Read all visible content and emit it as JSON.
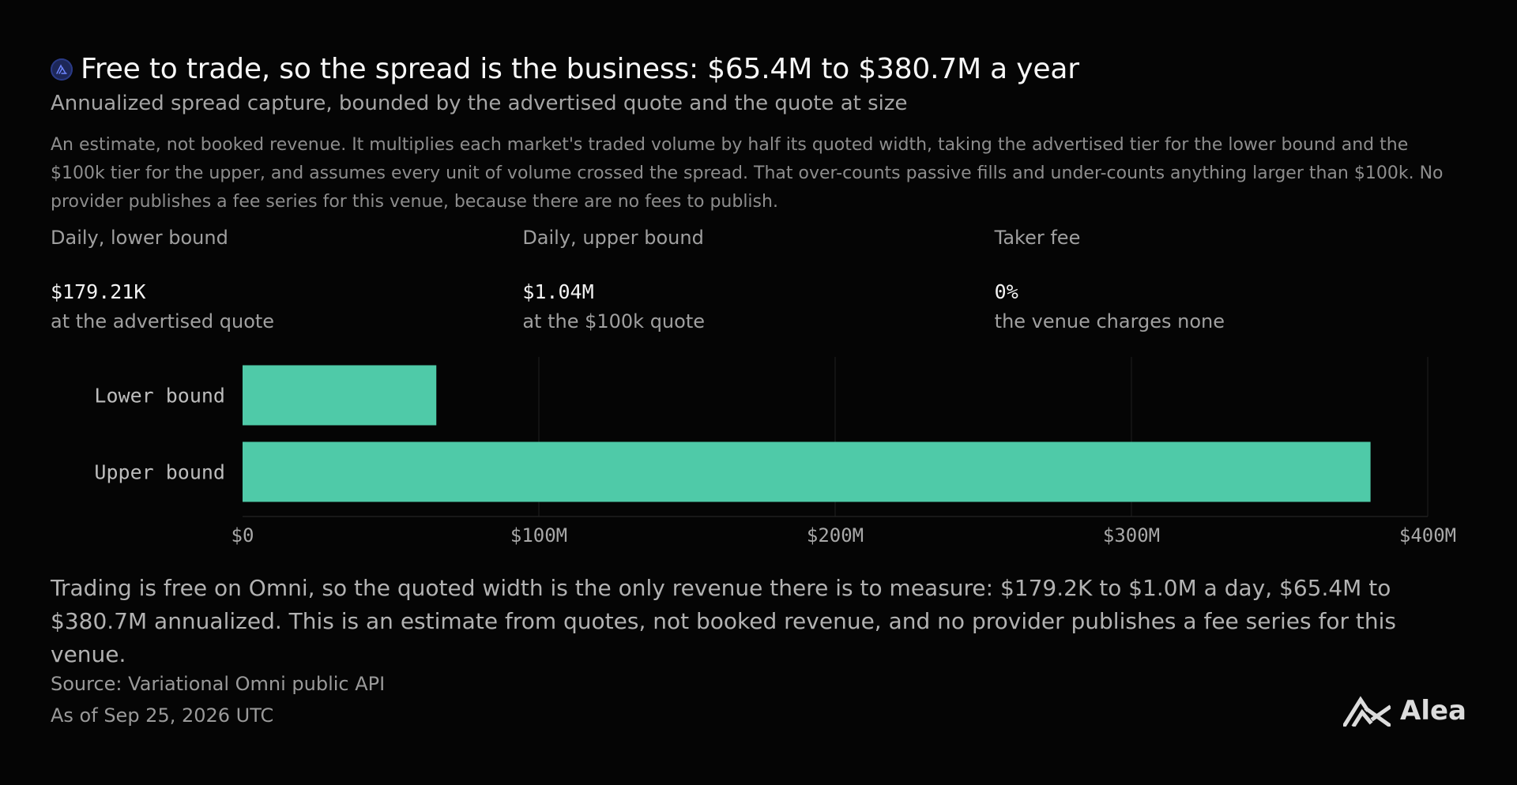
{
  "header": {
    "title": "Free to trade, so the spread is the business: $65.4M to $380.7M a year",
    "subtitle": "Annualized spread capture, bounded by the advertised quote and the quote at size",
    "note": "An estimate, not booked revenue. It multiplies each market's traded volume by half its quoted width, taking the advertised tier for the lower bound and the $100k tier for the upper, and assumes every unit of volume crossed the spread. That over-counts passive fills and under-counts anything larger than $100k. No provider publishes a fee series for this venue, because there are no fees to publish."
  },
  "kpis": [
    {
      "label": "Daily, lower bound",
      "value": "$179.21K",
      "sub": "at the advertised quote"
    },
    {
      "label": "Daily, upper bound",
      "value": "$1.04M",
      "sub": "at the $100k quote"
    },
    {
      "label": "Taker fee",
      "value": "0%",
      "sub": "the venue charges none"
    }
  ],
  "chart_data": {
    "type": "bar",
    "orientation": "horizontal",
    "categories": [
      "Lower bound",
      "Upper bound"
    ],
    "values": [
      65.4,
      380.7
    ],
    "unit": "$M",
    "xlim": [
      0,
      400
    ],
    "ticks": [
      0,
      100,
      200,
      300,
      400
    ],
    "tick_labels": [
      "$0",
      "$100M",
      "$200M",
      "$300M",
      "$400M"
    ],
    "bar_color": "#4fcaa8",
    "grid": true
  },
  "summary": "Trading is free on Omni, so the quoted width is the only revenue there is to measure: $179.2K to $1.0M a day, $65.4M to $380.7M annualized. This is an estimate from quotes, not booked revenue, and no provider publishes a fee series for this venue.",
  "footer": {
    "source": "Source: Variational Omni public API",
    "as_of": "As of Sep 25, 2026 UTC",
    "brand": "Alea"
  },
  "icons": {
    "title_icon": "brand-badge-icon",
    "brand_logo": "alea-logo-icon"
  }
}
